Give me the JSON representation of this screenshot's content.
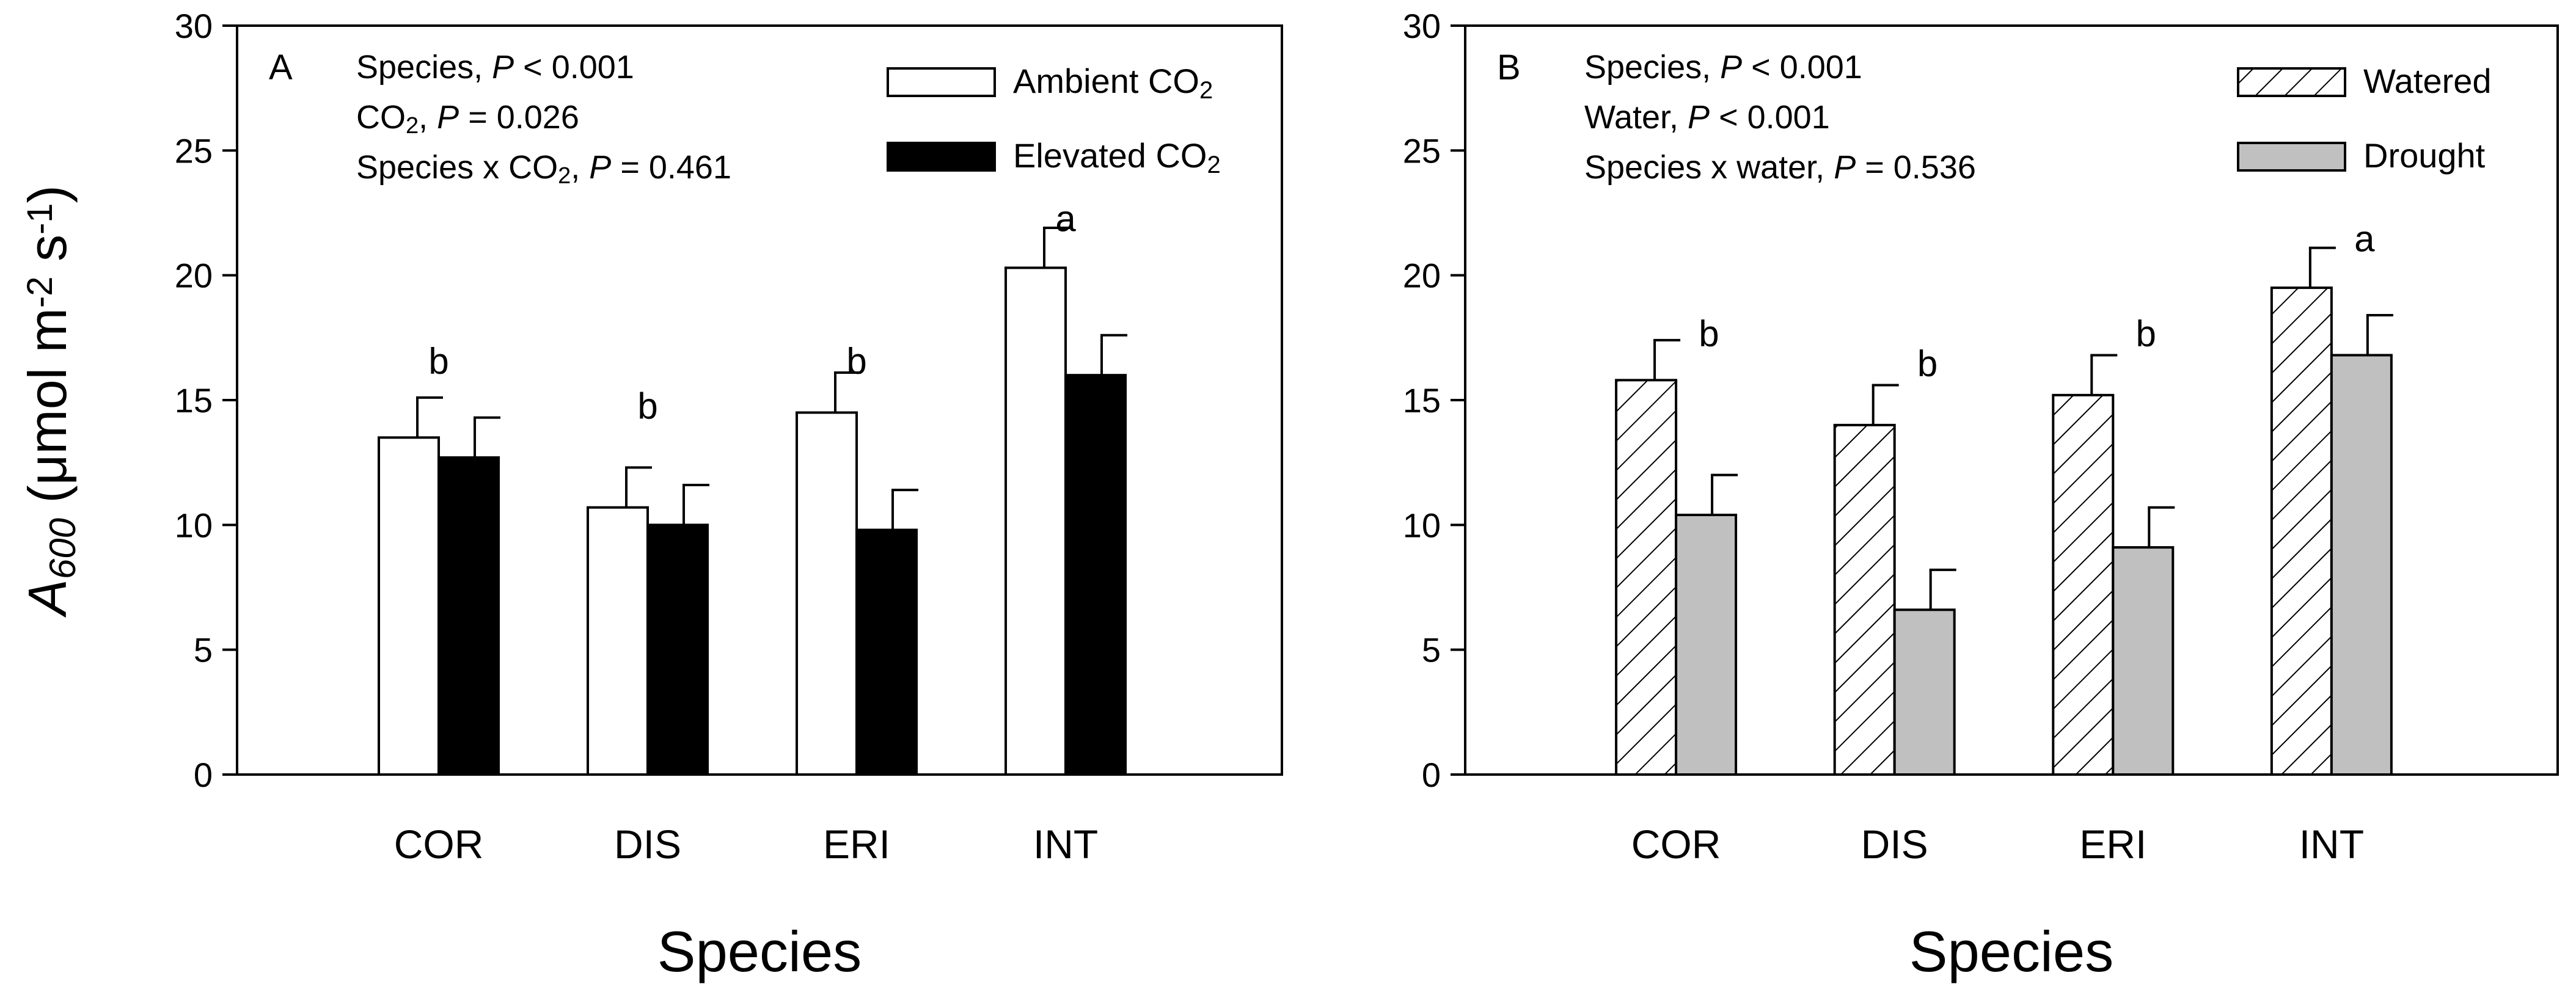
{
  "chart_data": [
    {
      "type": "bar",
      "panel_label": "A",
      "categories": [
        "COR",
        "DIS",
        "ERI",
        "INT"
      ],
      "series": [
        {
          "name": "Ambient CO2",
          "legend": [
            "Ambient CO",
            "2"
          ],
          "style": "open",
          "values": [
            13.5,
            10.7,
            14.5,
            20.3
          ],
          "errors": [
            1.6,
            1.6,
            1.6,
            1.6
          ]
        },
        {
          "name": "Elevated CO2",
          "legend": [
            "Elevated CO",
            "2"
          ],
          "style": "solid",
          "values": [
            12.7,
            10.0,
            9.8,
            16.0
          ],
          "errors": [
            1.6,
            1.6,
            1.6,
            1.6
          ]
        }
      ],
      "significance": [
        {
          "category": "COR",
          "label": "b",
          "y": 16.6
        },
        {
          "category": "DIS",
          "label": "b",
          "y": 14.8
        },
        {
          "category": "ERI",
          "label": "b",
          "y": 16.6
        },
        {
          "category": "INT",
          "label": "a",
          "y": 22.3
        }
      ],
      "stats": [
        [
          {
            "t": "Species, "
          },
          {
            "t": "P",
            "i": true
          },
          {
            "t": " < 0.001"
          }
        ],
        [
          {
            "t": "CO"
          },
          {
            "t": "2",
            "sub": true
          },
          {
            "t": ", "
          },
          {
            "t": "P",
            "i": true
          },
          {
            "t": "  = 0.026"
          }
        ],
        [
          {
            "t": "Species x CO"
          },
          {
            "t": "2",
            "sub": true
          },
          {
            "t": ", "
          },
          {
            "t": "P",
            "i": true
          },
          {
            "t": " = 0.461"
          }
        ]
      ],
      "xlabel": "Species",
      "ylabel": {
        "A": "A",
        "sub": "600",
        "unit_open": " (μmol m",
        "exp1": "-2",
        "mid": " s",
        "exp2": "-1",
        "close": ")"
      },
      "ylim": [
        0,
        30
      ],
      "yticks": [
        "0",
        "5",
        "10",
        "15",
        "20",
        "25",
        "30"
      ]
    },
    {
      "type": "bar",
      "panel_label": "B",
      "categories": [
        "COR",
        "DIS",
        "ERI",
        "INT"
      ],
      "series": [
        {
          "name": "Watered",
          "legend": [
            "Watered",
            ""
          ],
          "style": "hatched",
          "values": [
            15.8,
            14.0,
            15.2,
            19.5
          ],
          "errors": [
            1.6,
            1.6,
            1.6,
            1.6
          ]
        },
        {
          "name": "Drought",
          "legend": [
            "Drought",
            ""
          ],
          "style": "gray",
          "values": [
            10.4,
            6.6,
            9.1,
            16.8
          ],
          "errors": [
            1.6,
            1.6,
            1.6,
            1.6
          ]
        }
      ],
      "significance": [
        {
          "category": "COR",
          "label": "b",
          "y": 17.7
        },
        {
          "category": "DIS",
          "label": "b",
          "y": 16.5
        },
        {
          "category": "ERI",
          "label": "b",
          "y": 17.7
        },
        {
          "category": "INT",
          "label": "a",
          "y": 21.5
        }
      ],
      "stats": [
        [
          {
            "t": "Species, "
          },
          {
            "t": "P",
            "i": true
          },
          {
            "t": " < 0.001"
          }
        ],
        [
          {
            "t": "Water, "
          },
          {
            "t": "P",
            "i": true
          },
          {
            "t": " < 0.001"
          }
        ],
        [
          {
            "t": "Species x water, "
          },
          {
            "t": "P",
            "i": true
          },
          {
            "t": " = 0.536"
          }
        ]
      ],
      "xlabel": "Species",
      "ylim": [
        0,
        30
      ],
      "yticks": [
        "0",
        "5",
        "10",
        "15",
        "20",
        "25",
        "30"
      ]
    }
  ],
  "colors": {
    "open": "#ffffff",
    "solid": "#000000",
    "gray": "#c0c0c0",
    "hatched": "#ffffff",
    "stroke": "#000000"
  }
}
